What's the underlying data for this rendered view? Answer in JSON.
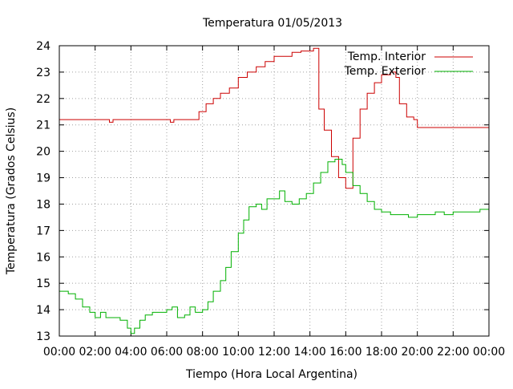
{
  "chart_data": {
    "type": "line",
    "title": "Temperatura 01/05/2013",
    "xlabel": "Tiempo (Hora Local Argentina)",
    "ylabel": "Temperatura (Grados Celsius)",
    "xlim": [
      0,
      24
    ],
    "ylim": [
      13,
      24
    ],
    "grid": true,
    "legend_position": "top-right",
    "x_ticks": [
      "00:00",
      "02:00",
      "04:00",
      "06:00",
      "08:00",
      "10:00",
      "12:00",
      "14:00",
      "16:00",
      "18:00",
      "20:00",
      "22:00",
      "00:00"
    ],
    "y_ticks": [
      "13",
      "14",
      "15",
      "16",
      "17",
      "18",
      "19",
      "20",
      "21",
      "22",
      "23",
      "24"
    ],
    "series": [
      {
        "name": "Temp. Interior",
        "color": "#cc0000",
        "x": [
          0,
          2.5,
          2.8,
          3.0,
          3.2,
          6.0,
          6.2,
          6.4,
          7.5,
          7.8,
          8.2,
          8.6,
          9.0,
          9.5,
          10.0,
          10.5,
          11.0,
          11.5,
          12.0,
          13.0,
          13.5,
          14.0,
          14.2,
          14.5,
          14.8,
          15.2,
          15.6,
          16.0,
          16.4,
          16.8,
          17.2,
          17.6,
          18.0,
          18.5,
          18.8,
          19.0,
          19.4,
          19.8,
          20.0,
          24.0
        ],
        "y": [
          21.2,
          21.2,
          21.1,
          21.2,
          21.2,
          21.2,
          21.1,
          21.2,
          21.2,
          21.5,
          21.8,
          22.0,
          22.2,
          22.4,
          22.8,
          23.0,
          23.2,
          23.4,
          23.6,
          23.75,
          23.8,
          23.8,
          23.9,
          21.6,
          20.8,
          19.8,
          19.0,
          18.6,
          20.5,
          21.6,
          22.2,
          22.6,
          22.9,
          23.0,
          22.8,
          21.8,
          21.3,
          21.2,
          20.9,
          20.9
        ]
      },
      {
        "name": "Temp. Exterior",
        "color": "#00b000",
        "x": [
          0,
          0.5,
          0.9,
          1.3,
          1.7,
          2.0,
          2.3,
          2.6,
          3.0,
          3.4,
          3.8,
          4.0,
          4.2,
          4.5,
          4.8,
          5.2,
          5.6,
          6.0,
          6.3,
          6.6,
          7.0,
          7.3,
          7.6,
          8.0,
          8.3,
          8.6,
          9.0,
          9.3,
          9.6,
          10.0,
          10.3,
          10.6,
          11.0,
          11.3,
          11.6,
          12.0,
          12.3,
          12.6,
          13.0,
          13.4,
          13.8,
          14.2,
          14.6,
          15.0,
          15.4,
          15.8,
          16.0,
          16.4,
          16.8,
          17.2,
          17.6,
          18.0,
          18.5,
          19.0,
          19.5,
          20.0,
          20.5,
          21.0,
          21.5,
          22.0,
          22.5,
          23.0,
          23.5,
          24.0
        ],
        "y": [
          14.7,
          14.6,
          14.4,
          14.1,
          13.9,
          13.7,
          13.9,
          13.7,
          13.7,
          13.6,
          13.3,
          13.1,
          13.3,
          13.6,
          13.8,
          13.9,
          13.9,
          14.0,
          14.1,
          13.7,
          13.8,
          14.1,
          13.9,
          14.0,
          14.3,
          14.7,
          15.1,
          15.6,
          16.2,
          16.9,
          17.4,
          17.9,
          18.0,
          17.8,
          18.2,
          18.2,
          18.5,
          18.1,
          18.0,
          18.2,
          18.4,
          18.8,
          19.2,
          19.6,
          19.7,
          19.5,
          19.2,
          18.7,
          18.4,
          18.1,
          17.8,
          17.7,
          17.6,
          17.6,
          17.5,
          17.6,
          17.6,
          17.7,
          17.6,
          17.7,
          17.7,
          17.7,
          17.8,
          17.8
        ]
      }
    ]
  }
}
